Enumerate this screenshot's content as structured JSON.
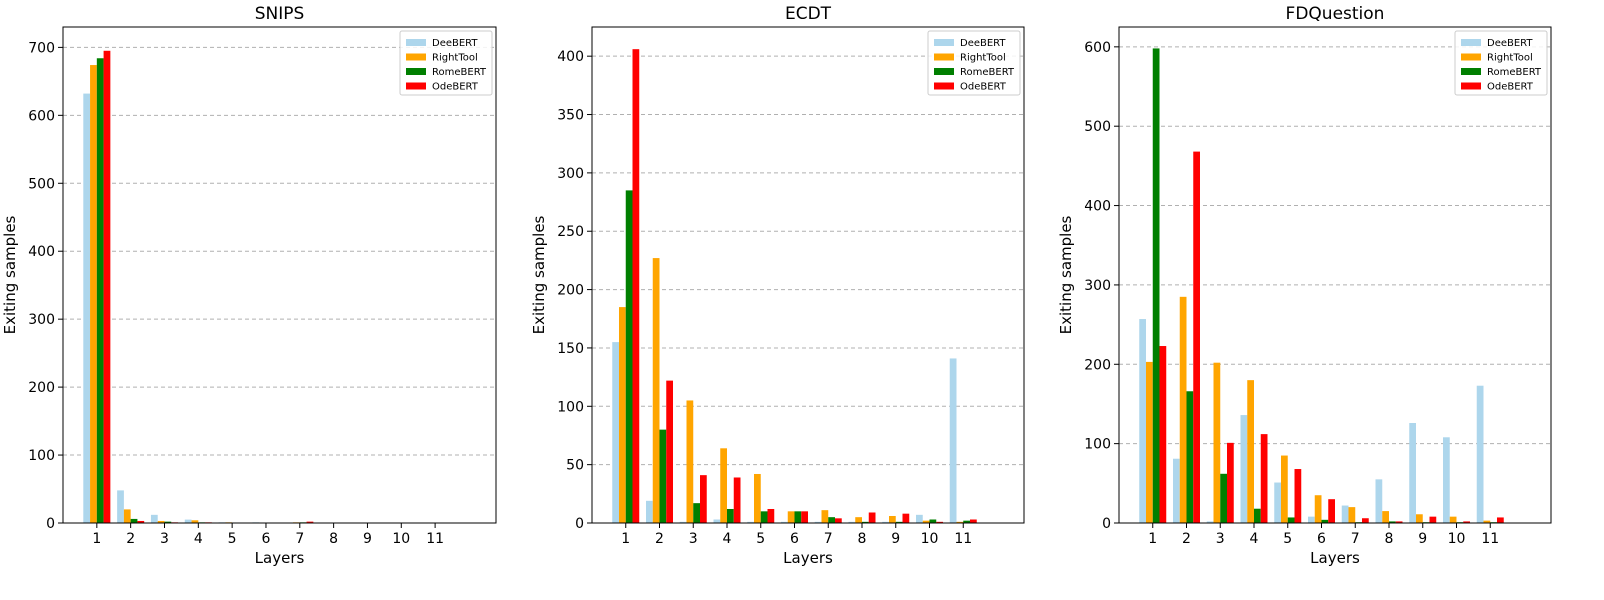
{
  "chart_data": [
    {
      "type": "bar",
      "title": "SNIPS",
      "xlabel": "Layers",
      "ylabel": "Exiting samples",
      "categories": [
        "1",
        "2",
        "3",
        "4",
        "5",
        "6",
        "7",
        "8",
        "9",
        "10",
        "11"
      ],
      "ylim": [
        0,
        730
      ],
      "yticks": [
        0,
        100,
        200,
        300,
        400,
        500,
        600,
        700
      ],
      "grid": true,
      "legend_position": "top-right",
      "series": [
        {
          "name": "DeeBERT",
          "values": [
            632,
            48,
            12,
            5,
            1,
            1,
            0,
            0,
            0,
            0,
            0
          ]
        },
        {
          "name": "RightTool",
          "values": [
            674,
            20,
            3,
            4,
            1,
            0,
            1,
            0,
            0,
            0,
            0
          ]
        },
        {
          "name": "RomeBERT",
          "values": [
            684,
            6,
            2,
            1,
            0,
            0,
            1,
            0,
            0,
            0,
            0
          ]
        },
        {
          "name": "OdeBERT",
          "values": [
            695,
            3,
            1,
            1,
            0,
            0,
            2,
            0,
            0,
            0,
            0
          ]
        }
      ]
    },
    {
      "type": "bar",
      "title": "ECDT",
      "xlabel": "Layers",
      "ylabel": "Exiting samples",
      "categories": [
        "1",
        "2",
        "3",
        "4",
        "5",
        "6",
        "7",
        "8",
        "9",
        "10",
        "11"
      ],
      "ylim": [
        0,
        425
      ],
      "yticks": [
        0,
        50,
        100,
        150,
        200,
        250,
        300,
        350,
        400
      ],
      "grid": true,
      "legend_position": "top-right",
      "series": [
        {
          "name": "DeeBERT",
          "values": [
            155,
            19,
            1,
            3,
            1,
            1,
            1,
            1,
            1,
            7,
            141
          ]
        },
        {
          "name": "RightTool",
          "values": [
            185,
            227,
            105,
            64,
            42,
            10,
            11,
            5,
            6,
            2,
            1
          ]
        },
        {
          "name": "RomeBERT",
          "values": [
            285,
            80,
            17,
            12,
            10,
            10,
            5,
            1,
            1,
            3,
            2
          ]
        },
        {
          "name": "OdeBERT",
          "values": [
            406,
            122,
            41,
            39,
            12,
            10,
            4,
            9,
            8,
            1,
            3
          ]
        }
      ]
    },
    {
      "type": "bar",
      "title": "FDQuestion",
      "xlabel": "Layers",
      "ylabel": "Exiting samples",
      "categories": [
        "1",
        "2",
        "3",
        "4",
        "5",
        "6",
        "7",
        "8",
        "9",
        "10",
        "11"
      ],
      "ylim": [
        0,
        625
      ],
      "yticks": [
        0,
        100,
        200,
        300,
        400,
        500,
        600
      ],
      "grid": true,
      "legend_position": "top-right",
      "series": [
        {
          "name": "DeeBERT",
          "values": [
            257,
            81,
            2,
            136,
            51,
            8,
            22,
            55,
            126,
            108,
            173
          ]
        },
        {
          "name": "RightTool",
          "values": [
            203,
            285,
            202,
            180,
            85,
            35,
            20,
            15,
            11,
            8,
            3
          ]
        },
        {
          "name": "RomeBERT",
          "values": [
            598,
            166,
            62,
            18,
            7,
            4,
            1,
            2,
            1,
            1,
            1
          ]
        },
        {
          "name": "OdeBERT",
          "values": [
            223,
            468,
            101,
            112,
            68,
            30,
            6,
            2,
            8,
            2,
            7
          ]
        }
      ]
    }
  ],
  "colors": {
    "DeeBERT": "#ADD6EC",
    "RightTool": "#FFA500",
    "RomeBERT": "#007F00",
    "OdeBERT": "#FF0000",
    "grid": "#B0B0B0"
  }
}
